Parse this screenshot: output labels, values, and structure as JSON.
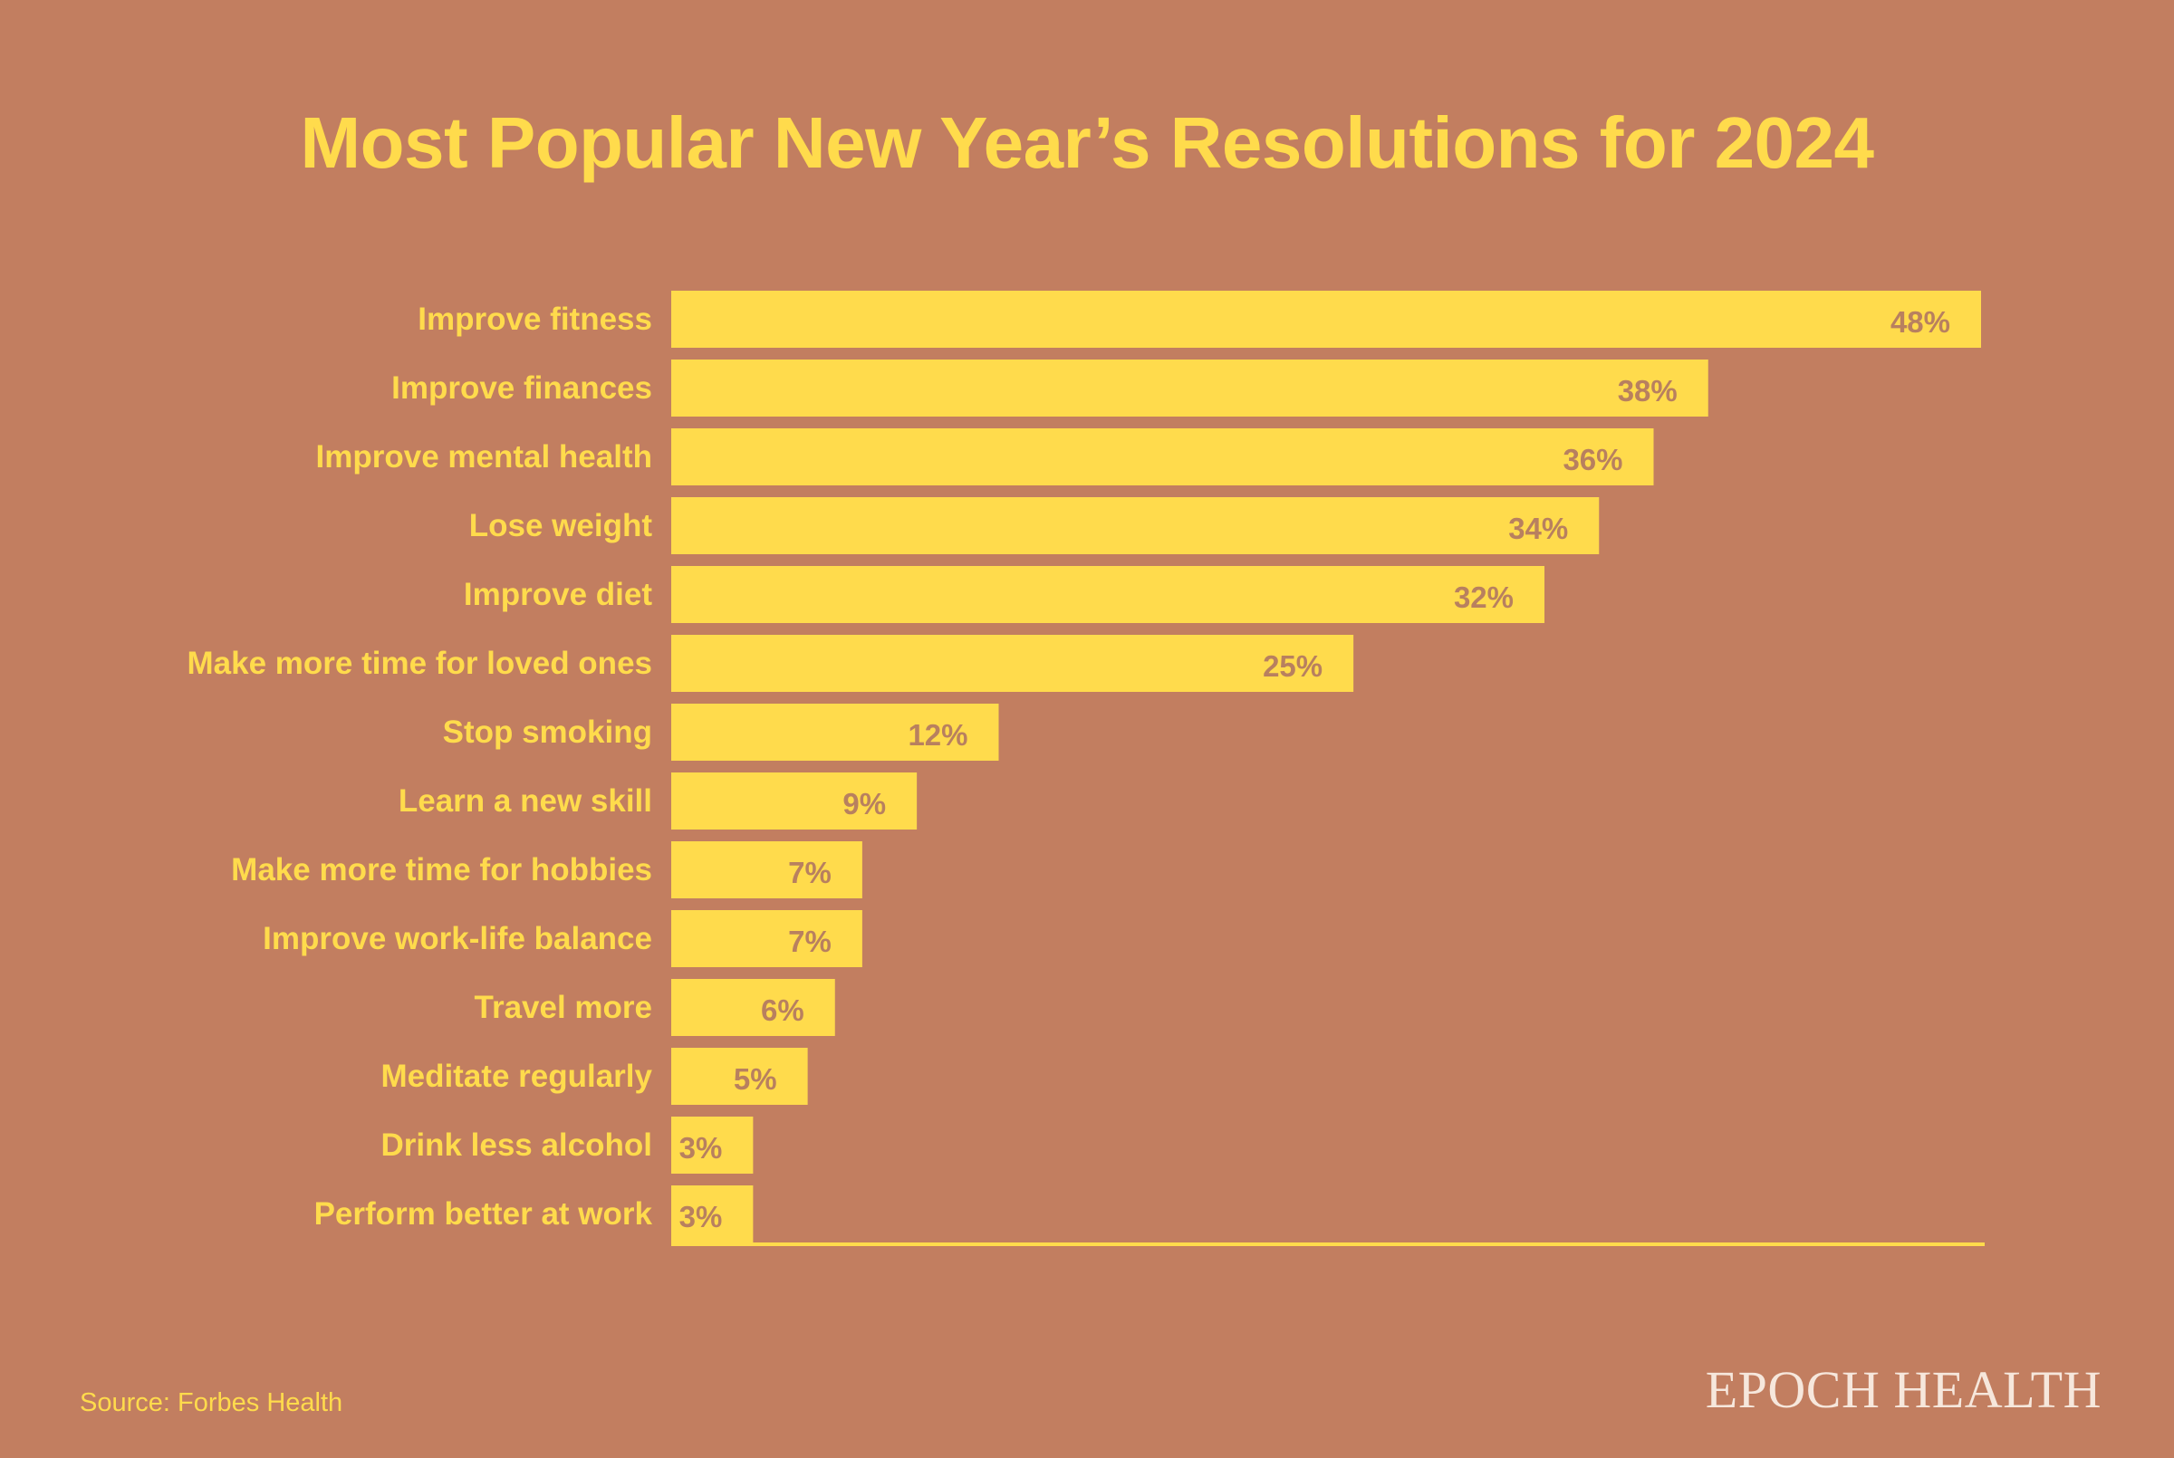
{
  "chart_data": {
    "type": "bar",
    "orientation": "horizontal",
    "title": "Most Popular New Year’s Resolutions for 2024",
    "xlabel": "",
    "ylabel": "",
    "categories": [
      "Improve fitness",
      "Improve finances",
      "Improve mental health",
      "Lose weight",
      "Improve diet",
      "Make more time for loved ones",
      "Stop smoking",
      "Learn a new skill",
      "Make more time for hobbies",
      "Improve work-life balance",
      "Travel more",
      "Meditate regularly",
      "Drink less alcohol",
      "Perform better at work"
    ],
    "values": [
      48,
      38,
      36,
      34,
      32,
      25,
      12,
      9,
      7,
      7,
      6,
      5,
      3,
      3
    ],
    "value_labels": [
      "48%",
      "38%",
      "36%",
      "34%",
      "32%",
      "25%",
      "12%",
      "9%",
      "7%",
      "7%",
      "6%",
      "5%",
      "3%",
      "3%"
    ],
    "unit": "%",
    "xlim": [
      0,
      48
    ],
    "grid": false,
    "legend": "none",
    "colors": {
      "background": "#C27E60",
      "bar": "#FFDB4C",
      "category_text": "#FFDB4C",
      "value_text": "#B8805F",
      "axis_line": "#FFDB4C"
    }
  },
  "footer": {
    "source": "Source: Forbes Health",
    "brand": "EPOCH HEALTH"
  }
}
